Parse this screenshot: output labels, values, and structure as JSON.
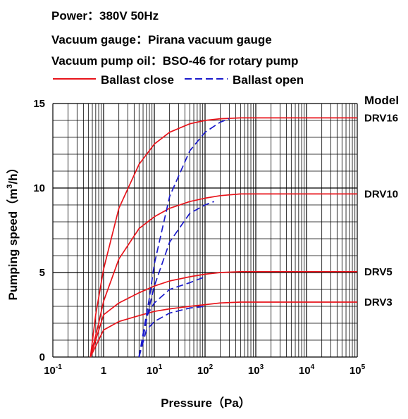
{
  "info": {
    "power": "Power：380V 50Hz",
    "gauge": "Vacuum gauge：Pirana vacuum gauge",
    "oil": "Vacuum pump oil：BSO-46 for rotary pump"
  },
  "legend_labels": {
    "ballast_close": "Ballast close",
    "ballast_open": "Ballast open",
    "model_header": "Model"
  },
  "colors": {
    "ballast_close": "#e8141b",
    "ballast_open": "#1a1acb",
    "grid": "#000000"
  },
  "chart_data": {
    "type": "line",
    "xlabel": "Pressure（Pa）",
    "ylabel_main": "Pumping speed（m",
    "ylabel_sup": "3",
    "ylabel_tail": "/h）",
    "xscale": "log",
    "xlim": [
      0.1,
      100000
    ],
    "ylim": [
      0,
      15
    ],
    "x_ticks": [
      {
        "base": "10",
        "exp": "-1",
        "value": 0.1
      },
      {
        "base": "1",
        "exp": "",
        "value": 1
      },
      {
        "base": "10",
        "exp": "1",
        "value": 10
      },
      {
        "base": "10",
        "exp": "2",
        "value": 100
      },
      {
        "base": "10",
        "exp": "3",
        "value": 1000
      },
      {
        "base": "10",
        "exp": "4",
        "value": 10000
      },
      {
        "base": "10",
        "exp": "5",
        "value": 100000
      }
    ],
    "y_ticks": [
      "0",
      "5",
      "10",
      "15"
    ],
    "y_tick_values": [
      0,
      5,
      10,
      15
    ],
    "grid": true,
    "series": [
      {
        "name": "DRV16",
        "line": "Ballast close",
        "x": [
          0.55,
          0.7,
          1,
          2,
          5,
          10,
          20,
          50,
          100,
          200,
          500,
          1000,
          100000
        ],
        "y": [
          0,
          2.5,
          5.2,
          8.8,
          11.4,
          12.6,
          13.3,
          13.8,
          14.0,
          14.1,
          14.15,
          14.15,
          14.15
        ]
      },
      {
        "name": "DRV10",
        "line": "Ballast close",
        "x": [
          0.55,
          0.8,
          1,
          2,
          5,
          10,
          20,
          50,
          100,
          200,
          500,
          1000,
          100000
        ],
        "y": [
          0,
          2.0,
          3.3,
          5.8,
          7.6,
          8.3,
          8.8,
          9.2,
          9.4,
          9.55,
          9.65,
          9.65,
          9.65
        ]
      },
      {
        "name": "DRV5",
        "line": "Ballast close",
        "x": [
          0.55,
          1,
          2,
          5,
          10,
          20,
          50,
          100,
          200,
          500,
          1000,
          100000
        ],
        "y": [
          0,
          2.5,
          3.2,
          3.8,
          4.2,
          4.5,
          4.75,
          4.9,
          5.0,
          5.05,
          5.05,
          5.05
        ]
      },
      {
        "name": "DRV3",
        "line": "Ballast close",
        "x": [
          0.55,
          1,
          2,
          5,
          10,
          20,
          50,
          100,
          200,
          500,
          1000,
          100000
        ],
        "y": [
          0,
          1.6,
          2.1,
          2.45,
          2.7,
          2.85,
          3.0,
          3.1,
          3.2,
          3.25,
          3.25,
          3.25
        ]
      },
      {
        "name": "DRV16",
        "line": "Ballast open",
        "x": [
          5,
          8,
          10,
          20,
          50,
          100,
          200,
          300
        ],
        "y": [
          0,
          3.5,
          5.5,
          9.5,
          12.2,
          13.3,
          13.9,
          14.1
        ]
      },
      {
        "name": "DRV10",
        "line": "Ballast open",
        "x": [
          5,
          8,
          10,
          20,
          50,
          100,
          150
        ],
        "y": [
          0,
          3.0,
          4.2,
          6.8,
          8.5,
          9.0,
          9.2
        ]
      },
      {
        "name": "DRV5",
        "line": "Ballast open",
        "x": [
          5,
          7,
          10,
          20,
          50,
          100
        ],
        "y": [
          0,
          2.4,
          3.2,
          4.0,
          4.4,
          4.75
        ]
      },
      {
        "name": "DRV3",
        "line": "Ballast open",
        "x": [
          5,
          7,
          10,
          20,
          50,
          100
        ],
        "y": [
          0,
          1.6,
          2.1,
          2.6,
          2.9,
          3.0
        ]
      }
    ],
    "model_labels": [
      {
        "label": "DRV16",
        "value": 14.15
      },
      {
        "label": "DRV10",
        "value": 9.65
      },
      {
        "label": "DRV5",
        "value": 5.05
      },
      {
        "label": "DRV3",
        "value": 3.25
      }
    ]
  }
}
